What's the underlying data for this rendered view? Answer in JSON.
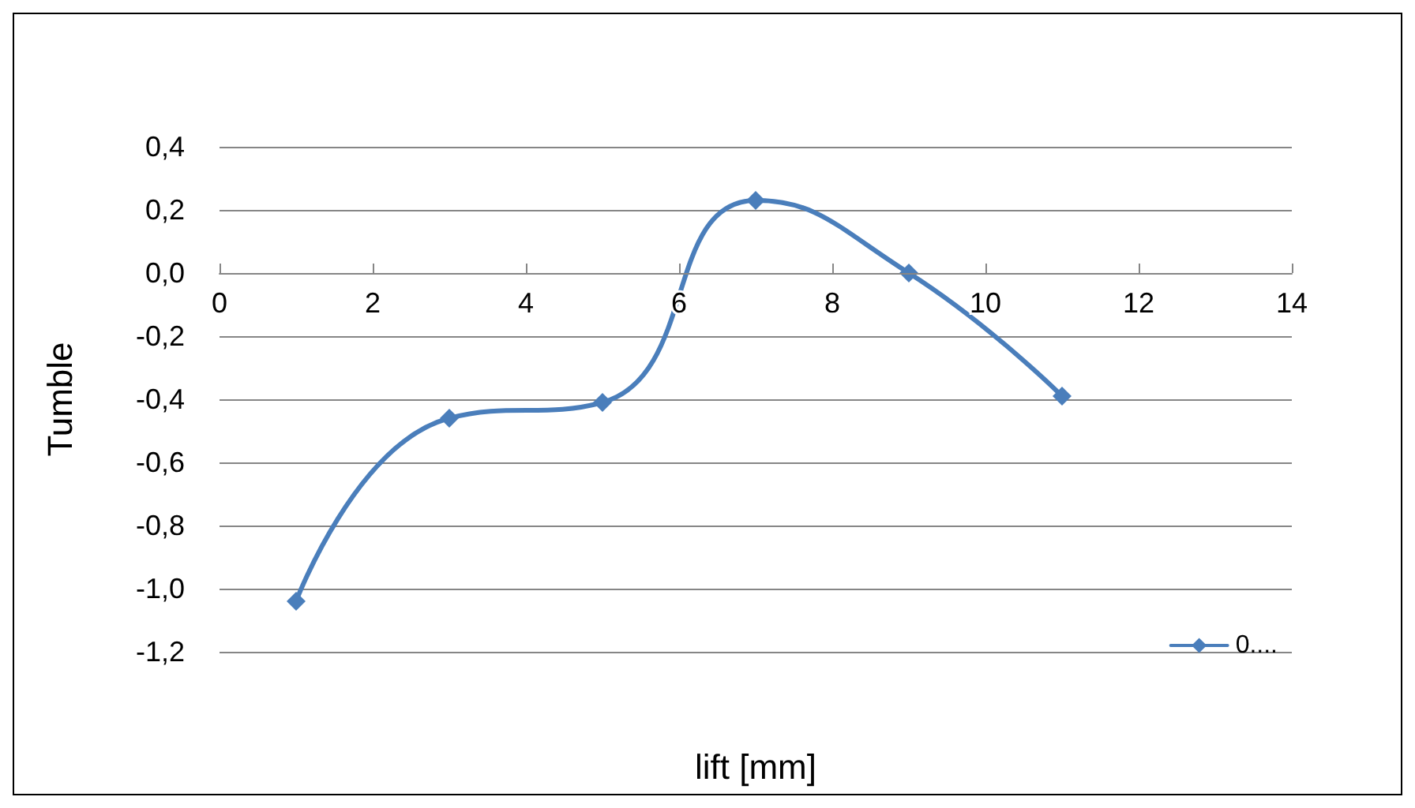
{
  "chart_data": {
    "type": "line",
    "xlabel": "lift [mm]",
    "ylabel": "Tumble",
    "x": [
      1,
      3,
      5,
      7,
      9,
      11
    ],
    "series": [
      {
        "name": "0....",
        "color": "#4a7ebb",
        "values": [
          -1.04,
          -0.46,
          -0.41,
          0.23,
          0.0,
          -0.39
        ]
      }
    ],
    "xlim": [
      0,
      14
    ],
    "xticks": [
      0,
      2,
      4,
      6,
      8,
      10,
      12,
      14
    ],
    "ylim": [
      -1.2,
      0.4
    ],
    "yticks": [
      {
        "value": -1.2,
        "label": "-1,2"
      },
      {
        "value": -1.0,
        "label": "-1,0"
      },
      {
        "value": -0.8,
        "label": "-0,8"
      },
      {
        "value": -0.6,
        "label": "-0,6"
      },
      {
        "value": -0.4,
        "label": "-0,4"
      },
      {
        "value": -0.2,
        "label": "-0,2"
      },
      {
        "value": 0,
        "label": "0,0"
      },
      {
        "value": 0.2,
        "label": "0,2"
      },
      {
        "value": 0.4,
        "label": "0,4"
      }
    ],
    "grid": "y",
    "legend": "bottom right",
    "marker": "diamond",
    "line_style": "solid"
  }
}
